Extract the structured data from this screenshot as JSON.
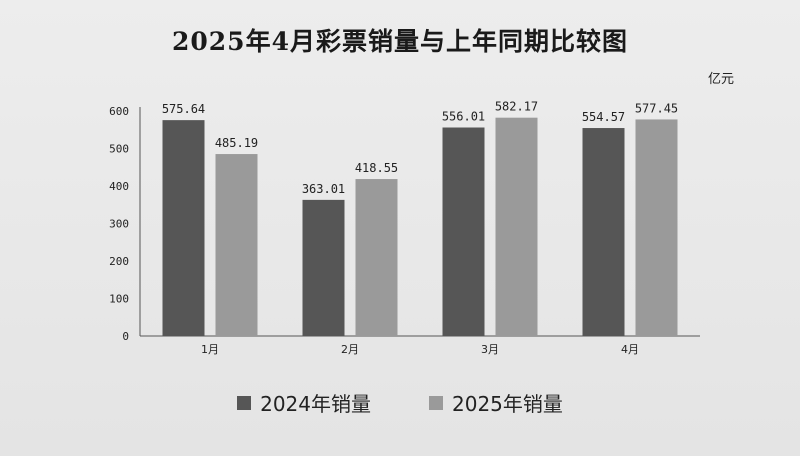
{
  "chart_data": {
    "type": "bar",
    "title": "2025年4月彩票销量与上年同期比较图",
    "unit": "亿元",
    "categories": [
      "1月",
      "2月",
      "3月",
      "4月"
    ],
    "series": [
      {
        "name": "2024年销量",
        "values": [
          575.64,
          363.01,
          556.01,
          554.57
        ],
        "labels": [
          "575.64",
          "363.01",
          "556.01",
          "554.57"
        ],
        "color": "#565656"
      },
      {
        "name": "2025年销量",
        "values": [
          485.19,
          418.55,
          582.17,
          577.45
        ],
        "labels": [
          "485.19",
          "418.55",
          "582.17",
          "577.45"
        ],
        "color": "#9a9a9a"
      }
    ],
    "ylim": [
      0,
      600
    ],
    "yticks": [
      0,
      100,
      200,
      300,
      400,
      500,
      600
    ],
    "grid": false,
    "legend_position": "bottom"
  }
}
